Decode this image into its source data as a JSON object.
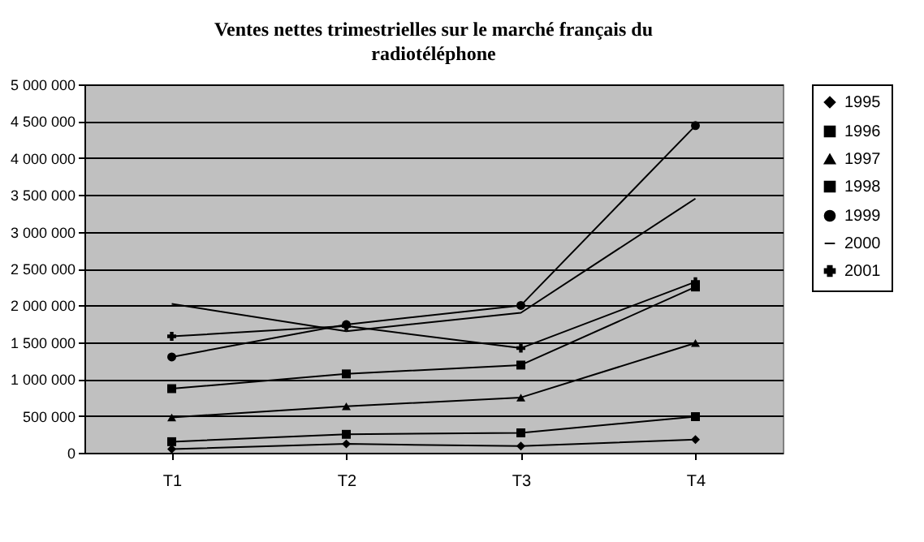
{
  "chart_data": {
    "type": "line",
    "title": "Ventes nettes trimestrielles sur le marché français du radiotéléphone",
    "categories": [
      "T1",
      "T2",
      "T3",
      "T4"
    ],
    "series": [
      {
        "name": "1995",
        "color": "#000000",
        "marker": "diamond",
        "values": [
          50000,
          120000,
          90000,
          180000
        ]
      },
      {
        "name": "1996",
        "color": "#000000",
        "marker": "square",
        "values": [
          150000,
          250000,
          270000,
          490000
        ]
      },
      {
        "name": "1997",
        "color": "#000000",
        "marker": "triangle",
        "values": [
          480000,
          630000,
          750000,
          1490000
        ]
      },
      {
        "name": "1998",
        "color": "#000000",
        "marker": "square",
        "values": [
          870000,
          1070000,
          1190000,
          2250000
        ]
      },
      {
        "name": "1999",
        "color": "#000000",
        "marker": "circle",
        "values": [
          1300000,
          1740000,
          2000000,
          4440000
        ]
      },
      {
        "name": "2000",
        "color": "#000000",
        "marker": "none",
        "values": [
          2020000,
          1650000,
          1900000,
          3450000
        ]
      },
      {
        "name": "2001",
        "color": "#000000",
        "marker": "cross",
        "values": [
          1580000,
          1720000,
          1420000,
          2320000
        ]
      }
    ],
    "ylim": [
      0,
      5000000
    ],
    "yticks": [
      0,
      500000,
      1000000,
      1500000,
      2000000,
      2500000,
      3000000,
      3500000,
      4000000,
      4500000,
      5000000
    ],
    "grid": "y",
    "legend": "right",
    "line_style": "solid"
  }
}
